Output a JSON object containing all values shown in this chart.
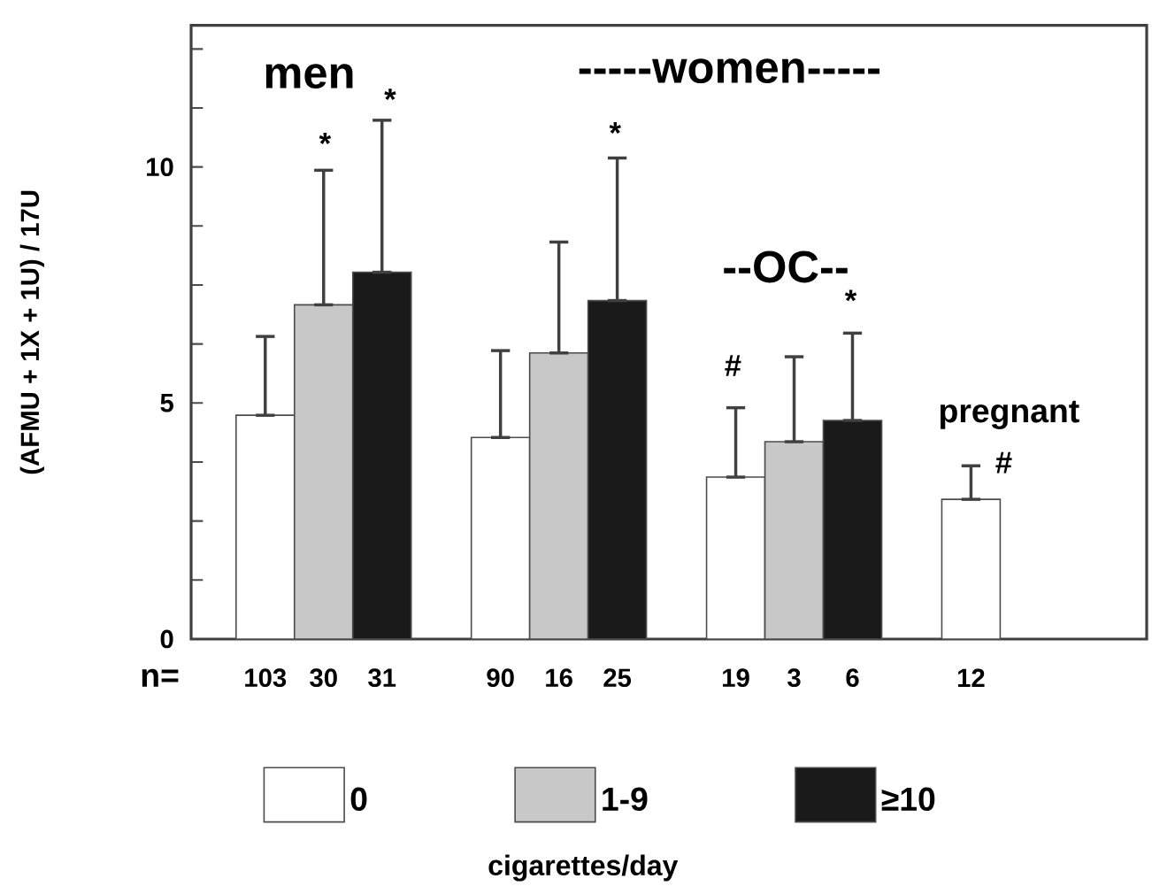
{
  "chart_data": {
    "type": "bar",
    "ylabel": "(AFMU + 1X + 1U) / 17U",
    "legend_title": "cigarettes/day",
    "categories": [
      "103",
      "30",
      "31",
      "90",
      "16",
      "25",
      "19",
      "3",
      "6",
      "12"
    ],
    "series": [
      {
        "name": "0",
        "color": "#ffffff",
        "values": [
          4.74,
          null,
          null,
          4.27,
          null,
          null,
          3.43,
          null,
          null,
          2.96
        ],
        "errors": [
          [
            4.74,
            6.41
          ],
          null,
          null,
          [
            4.27,
            6.11
          ],
          null,
          null,
          [
            3.43,
            4.9
          ],
          null,
          null,
          [
            2.96,
            3.67
          ]
        ]
      },
      {
        "name": "1-9",
        "color": "#c8c8c8",
        "values": [
          null,
          7.08,
          null,
          null,
          6.06,
          null,
          null,
          4.18,
          null,
          null
        ],
        "errors": [
          null,
          [
            7.08,
            9.93
          ],
          null,
          null,
          [
            6.06,
            8.41
          ],
          null,
          null,
          [
            4.18,
            5.98
          ],
          null,
          null
        ]
      },
      {
        "name": "≥10",
        "color": "#1a1a1a",
        "values": [
          null,
          null,
          7.77,
          null,
          null,
          7.17,
          null,
          null,
          4.63,
          null
        ],
        "errors": [
          null,
          null,
          [
            7.77,
            10.99
          ],
          null,
          null,
          [
            7.17,
            10.19
          ],
          null,
          null,
          [
            4.63,
            6.48
          ],
          null
        ]
      }
    ],
    "ylim": [
      0,
      13
    ],
    "yticks": [
      {
        "value": 0,
        "label": "0"
      },
      {
        "value": 1.25,
        "label": null
      },
      {
        "value": 2.5,
        "label": null
      },
      {
        "value": 3.75,
        "label": null
      },
      {
        "value": 5,
        "label": "5"
      },
      {
        "value": 6.25,
        "label": null
      },
      {
        "value": 7.5,
        "label": null
      },
      {
        "value": 8.75,
        "label": null
      },
      {
        "value": 10,
        "label": "10"
      },
      {
        "value": 11.25,
        "label": null
      },
      {
        "value": 12.5,
        "label": null
      }
    ],
    "legend": "bottom",
    "annotations": [
      "men",
      "*",
      "-----women-----",
      "*",
      "*",
      "--OC--",
      "*",
      "#",
      "pregnant",
      "#",
      "n="
    ]
  }
}
